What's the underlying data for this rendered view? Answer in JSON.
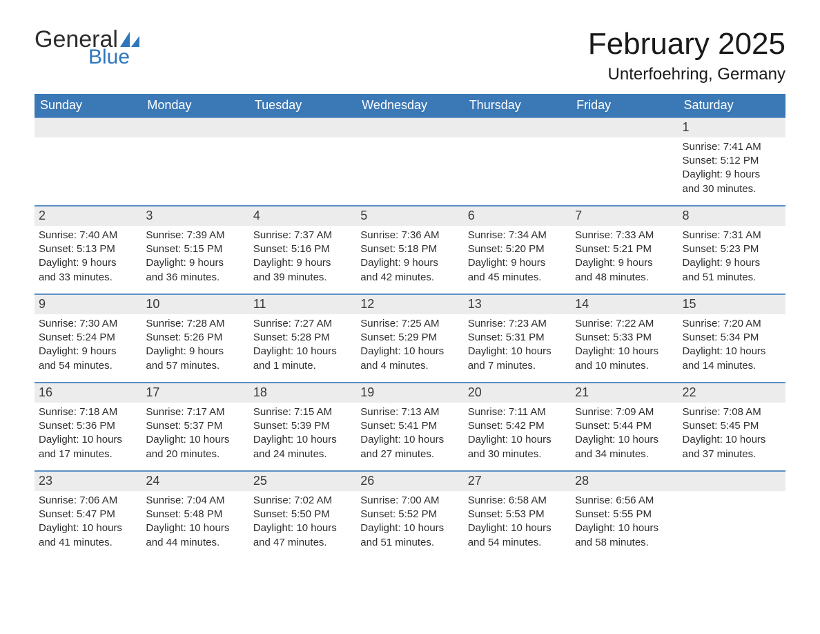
{
  "logo": {
    "text_general": "General",
    "text_blue": "Blue",
    "sail_color": "#2f77bc"
  },
  "header": {
    "title": "February 2025",
    "location": "Unterfoehring, Germany"
  },
  "colors": {
    "header_bg": "#3b78b6",
    "header_text": "#ffffff",
    "row_border": "#5a8fc4",
    "daynum_bg": "#ececec",
    "text": "#2e2e2e"
  },
  "calendar": {
    "day_headers": [
      "Sunday",
      "Monday",
      "Tuesday",
      "Wednesday",
      "Thursday",
      "Friday",
      "Saturday"
    ],
    "weeks": [
      [
        null,
        null,
        null,
        null,
        null,
        null,
        {
          "n": "1",
          "sunrise": "Sunrise: 7:41 AM",
          "sunset": "Sunset: 5:12 PM",
          "day1": "Daylight: 9 hours",
          "day2": "and 30 minutes."
        }
      ],
      [
        {
          "n": "2",
          "sunrise": "Sunrise: 7:40 AM",
          "sunset": "Sunset: 5:13 PM",
          "day1": "Daylight: 9 hours",
          "day2": "and 33 minutes."
        },
        {
          "n": "3",
          "sunrise": "Sunrise: 7:39 AM",
          "sunset": "Sunset: 5:15 PM",
          "day1": "Daylight: 9 hours",
          "day2": "and 36 minutes."
        },
        {
          "n": "4",
          "sunrise": "Sunrise: 7:37 AM",
          "sunset": "Sunset: 5:16 PM",
          "day1": "Daylight: 9 hours",
          "day2": "and 39 minutes."
        },
        {
          "n": "5",
          "sunrise": "Sunrise: 7:36 AM",
          "sunset": "Sunset: 5:18 PM",
          "day1": "Daylight: 9 hours",
          "day2": "and 42 minutes."
        },
        {
          "n": "6",
          "sunrise": "Sunrise: 7:34 AM",
          "sunset": "Sunset: 5:20 PM",
          "day1": "Daylight: 9 hours",
          "day2": "and 45 minutes."
        },
        {
          "n": "7",
          "sunrise": "Sunrise: 7:33 AM",
          "sunset": "Sunset: 5:21 PM",
          "day1": "Daylight: 9 hours",
          "day2": "and 48 minutes."
        },
        {
          "n": "8",
          "sunrise": "Sunrise: 7:31 AM",
          "sunset": "Sunset: 5:23 PM",
          "day1": "Daylight: 9 hours",
          "day2": "and 51 minutes."
        }
      ],
      [
        {
          "n": "9",
          "sunrise": "Sunrise: 7:30 AM",
          "sunset": "Sunset: 5:24 PM",
          "day1": "Daylight: 9 hours",
          "day2": "and 54 minutes."
        },
        {
          "n": "10",
          "sunrise": "Sunrise: 7:28 AM",
          "sunset": "Sunset: 5:26 PM",
          "day1": "Daylight: 9 hours",
          "day2": "and 57 minutes."
        },
        {
          "n": "11",
          "sunrise": "Sunrise: 7:27 AM",
          "sunset": "Sunset: 5:28 PM",
          "day1": "Daylight: 10 hours",
          "day2": "and 1 minute."
        },
        {
          "n": "12",
          "sunrise": "Sunrise: 7:25 AM",
          "sunset": "Sunset: 5:29 PM",
          "day1": "Daylight: 10 hours",
          "day2": "and 4 minutes."
        },
        {
          "n": "13",
          "sunrise": "Sunrise: 7:23 AM",
          "sunset": "Sunset: 5:31 PM",
          "day1": "Daylight: 10 hours",
          "day2": "and 7 minutes."
        },
        {
          "n": "14",
          "sunrise": "Sunrise: 7:22 AM",
          "sunset": "Sunset: 5:33 PM",
          "day1": "Daylight: 10 hours",
          "day2": "and 10 minutes."
        },
        {
          "n": "15",
          "sunrise": "Sunrise: 7:20 AM",
          "sunset": "Sunset: 5:34 PM",
          "day1": "Daylight: 10 hours",
          "day2": "and 14 minutes."
        }
      ],
      [
        {
          "n": "16",
          "sunrise": "Sunrise: 7:18 AM",
          "sunset": "Sunset: 5:36 PM",
          "day1": "Daylight: 10 hours",
          "day2": "and 17 minutes."
        },
        {
          "n": "17",
          "sunrise": "Sunrise: 7:17 AM",
          "sunset": "Sunset: 5:37 PM",
          "day1": "Daylight: 10 hours",
          "day2": "and 20 minutes."
        },
        {
          "n": "18",
          "sunrise": "Sunrise: 7:15 AM",
          "sunset": "Sunset: 5:39 PM",
          "day1": "Daylight: 10 hours",
          "day2": "and 24 minutes."
        },
        {
          "n": "19",
          "sunrise": "Sunrise: 7:13 AM",
          "sunset": "Sunset: 5:41 PM",
          "day1": "Daylight: 10 hours",
          "day2": "and 27 minutes."
        },
        {
          "n": "20",
          "sunrise": "Sunrise: 7:11 AM",
          "sunset": "Sunset: 5:42 PM",
          "day1": "Daylight: 10 hours",
          "day2": "and 30 minutes."
        },
        {
          "n": "21",
          "sunrise": "Sunrise: 7:09 AM",
          "sunset": "Sunset: 5:44 PM",
          "day1": "Daylight: 10 hours",
          "day2": "and 34 minutes."
        },
        {
          "n": "22",
          "sunrise": "Sunrise: 7:08 AM",
          "sunset": "Sunset: 5:45 PM",
          "day1": "Daylight: 10 hours",
          "day2": "and 37 minutes."
        }
      ],
      [
        {
          "n": "23",
          "sunrise": "Sunrise: 7:06 AM",
          "sunset": "Sunset: 5:47 PM",
          "day1": "Daylight: 10 hours",
          "day2": "and 41 minutes."
        },
        {
          "n": "24",
          "sunrise": "Sunrise: 7:04 AM",
          "sunset": "Sunset: 5:48 PM",
          "day1": "Daylight: 10 hours",
          "day2": "and 44 minutes."
        },
        {
          "n": "25",
          "sunrise": "Sunrise: 7:02 AM",
          "sunset": "Sunset: 5:50 PM",
          "day1": "Daylight: 10 hours",
          "day2": "and 47 minutes."
        },
        {
          "n": "26",
          "sunrise": "Sunrise: 7:00 AM",
          "sunset": "Sunset: 5:52 PM",
          "day1": "Daylight: 10 hours",
          "day2": "and 51 minutes."
        },
        {
          "n": "27",
          "sunrise": "Sunrise: 6:58 AM",
          "sunset": "Sunset: 5:53 PM",
          "day1": "Daylight: 10 hours",
          "day2": "and 54 minutes."
        },
        {
          "n": "28",
          "sunrise": "Sunrise: 6:56 AM",
          "sunset": "Sunset: 5:55 PM",
          "day1": "Daylight: 10 hours",
          "day2": "and 58 minutes."
        },
        null
      ]
    ]
  }
}
